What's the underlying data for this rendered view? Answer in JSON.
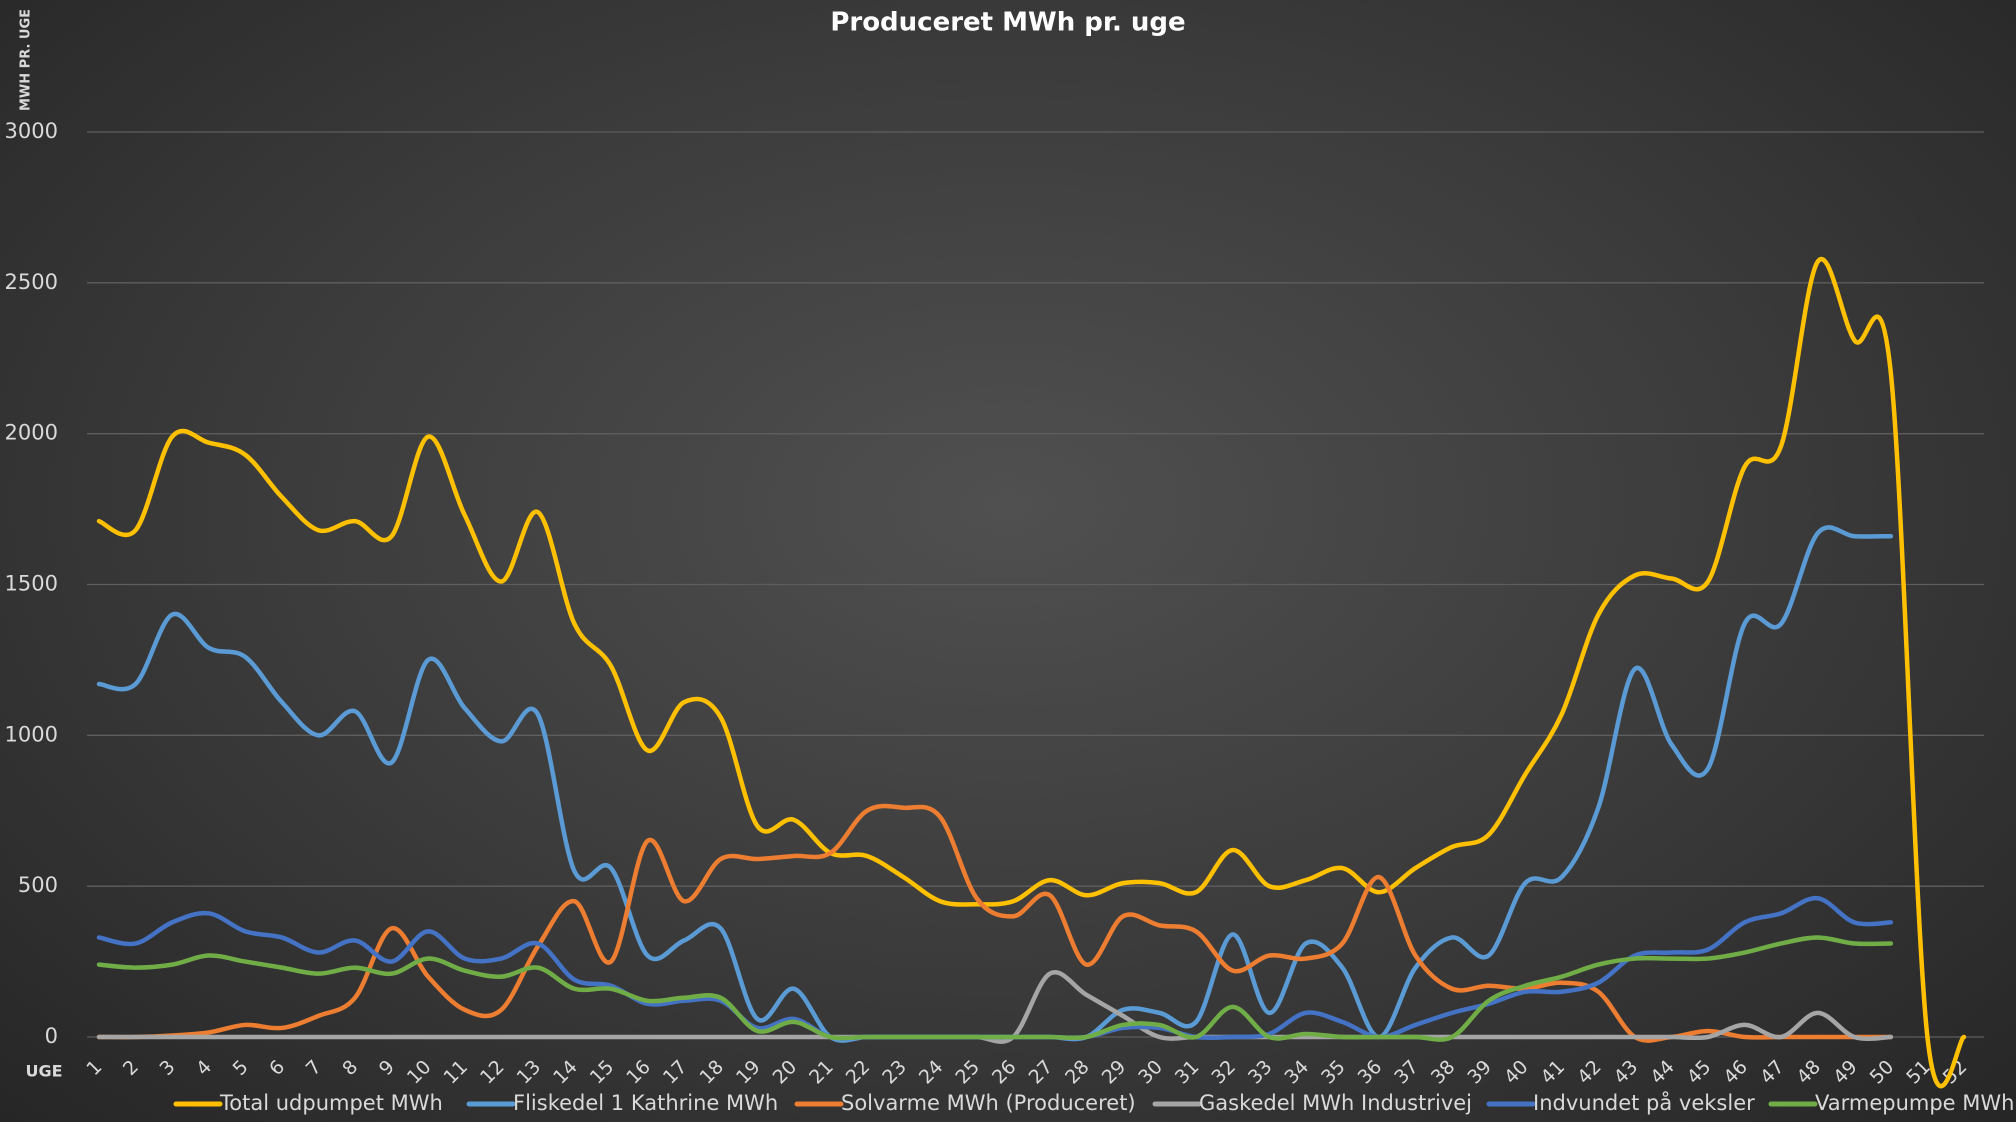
{
  "chart_data": {
    "type": "line",
    "title": "Produceret MWh pr. uge",
    "y_label": "MWH PR. UGE",
    "x_label": "UGE",
    "categories": [
      "1",
      "2",
      "3",
      "4",
      "5",
      "6",
      "7",
      "8",
      "9",
      "10",
      "11",
      "12",
      "13",
      "14",
      "15",
      "16",
      "17",
      "18",
      "19",
      "20",
      "21",
      "22",
      "23",
      "24",
      "25",
      "26",
      "27",
      "28",
      "29",
      "30",
      "31",
      "32",
      "33",
      "34",
      "35",
      "36",
      "37",
      "38",
      "39",
      "40",
      "41",
      "42",
      "43",
      "44",
      "45",
      "46",
      "47",
      "48",
      "49",
      "50",
      "51",
      "52"
    ],
    "ylim": [
      0,
      3000
    ],
    "yticks": [
      0,
      500,
      1000,
      1500,
      2000,
      2500,
      3000
    ],
    "grid": true,
    "smooth": true,
    "legend": "bottom",
    "series": [
      {
        "name": "Total udpumpet MWh",
        "color": "#ffc000",
        "values": [
          1710,
          1680,
          1990,
          1970,
          1930,
          1790,
          1680,
          1710,
          1660,
          1990,
          1730,
          1510,
          1740,
          1370,
          1230,
          950,
          1110,
          1060,
          700,
          720,
          610,
          600,
          530,
          450,
          440,
          450,
          520,
          470,
          510,
          510,
          480,
          620,
          500,
          520,
          560,
          480,
          560,
          630,
          670,
          870,
          1070,
          1400,
          1530,
          1520,
          1510,
          1890,
          1960,
          2570,
          2310,
          2200,
          0,
          0
        ]
      },
      {
        "name": "Fliskedel 1 Kathrine MWh",
        "color": "#5b9bd5",
        "values": [
          1170,
          1170,
          1400,
          1290,
          1260,
          1110,
          1000,
          1080,
          910,
          1250,
          1090,
          980,
          1070,
          550,
          560,
          270,
          320,
          360,
          60,
          160,
          0,
          0,
          0,
          0,
          0,
          0,
          0,
          0,
          90,
          80,
          50,
          340,
          80,
          310,
          230,
          0,
          230,
          330,
          270,
          510,
          530,
          760,
          1220,
          970,
          890,
          1370,
          1370,
          1670,
          1660,
          1660,
          null,
          null
        ]
      },
      {
        "name": "Solvarme MWh (Produceret)",
        "color": "#ed7d31",
        "values": [
          0,
          0,
          5,
          15,
          40,
          30,
          70,
          130,
          360,
          200,
          90,
          90,
          300,
          450,
          250,
          650,
          450,
          590,
          590,
          600,
          610,
          750,
          760,
          730,
          460,
          400,
          470,
          240,
          400,
          370,
          350,
          220,
          270,
          260,
          310,
          530,
          270,
          160,
          170,
          160,
          180,
          150,
          0,
          0,
          20,
          0,
          0,
          0,
          0,
          0,
          null,
          null
        ]
      },
      {
        "name": "Gaskedel MWh Industrivej",
        "color": "#a5a5a5",
        "values": [
          0,
          0,
          0,
          0,
          0,
          0,
          0,
          0,
          0,
          0,
          0,
          0,
          0,
          0,
          0,
          0,
          0,
          0,
          0,
          0,
          0,
          0,
          0,
          0,
          0,
          0,
          210,
          140,
          70,
          0,
          0,
          0,
          0,
          0,
          0,
          0,
          0,
          0,
          0,
          0,
          0,
          0,
          0,
          0,
          0,
          40,
          0,
          80,
          0,
          0,
          null,
          null
        ]
      },
      {
        "name": "Indvundet på veksler",
        "color": "#4472c4",
        "values": [
          330,
          310,
          380,
          410,
          350,
          330,
          280,
          320,
          250,
          350,
          260,
          260,
          310,
          190,
          170,
          110,
          120,
          120,
          30,
          60,
          0,
          0,
          0,
          0,
          0,
          0,
          0,
          0,
          30,
          30,
          0,
          0,
          10,
          80,
          50,
          0,
          40,
          80,
          110,
          150,
          150,
          180,
          270,
          280,
          290,
          380,
          410,
          460,
          380,
          380,
          null,
          null
        ]
      },
      {
        "name": "Varmepumpe MWh",
        "color": "#70ad47",
        "values": [
          240,
          230,
          240,
          270,
          250,
          230,
          210,
          230,
          210,
          260,
          220,
          200,
          230,
          160,
          160,
          120,
          130,
          130,
          20,
          50,
          0,
          0,
          0,
          0,
          0,
          0,
          0,
          0,
          40,
          40,
          0,
          100,
          0,
          10,
          0,
          0,
          0,
          0,
          120,
          170,
          200,
          240,
          260,
          260,
          260,
          280,
          310,
          330,
          310,
          310,
          null,
          null
        ]
      }
    ]
  }
}
